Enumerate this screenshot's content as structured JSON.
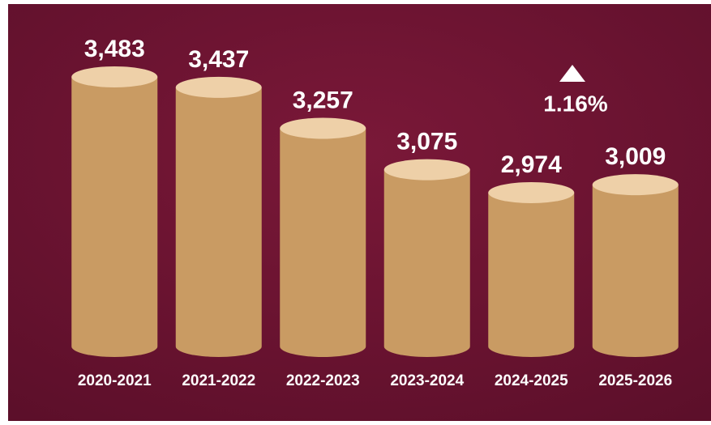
{
  "chart_data": {
    "type": "bar",
    "annotation": "1.16%",
    "categories": [
      "2020-2021",
      "2021-2022",
      "2022-2023",
      "2023-2024",
      "2024-2025",
      "2025-2026"
    ],
    "values": [
      3483,
      3437,
      3257,
      3075,
      2974,
      3009
    ],
    "value_labels": [
      "3,483",
      "3,437",
      "3,257",
      "3,075",
      "2,974",
      "3,009"
    ],
    "color": "#c99b63"
  }
}
